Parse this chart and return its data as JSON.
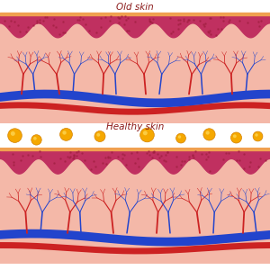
{
  "title_old": "Old skin",
  "title_healthy": "Healthy skin",
  "title_color": "#8B1A1A",
  "title_fontsize": 7.5,
  "bg_color": "#FFFFFF",
  "skin_pink": "#F4B8A8",
  "epidermis_dark": "#C03060",
  "epidermis_orange": "#F0A050",
  "artery_color": "#CC2222",
  "vein_color": "#2244CC",
  "collagen_color": "#F5A800",
  "collagen_edge": "#D48000"
}
